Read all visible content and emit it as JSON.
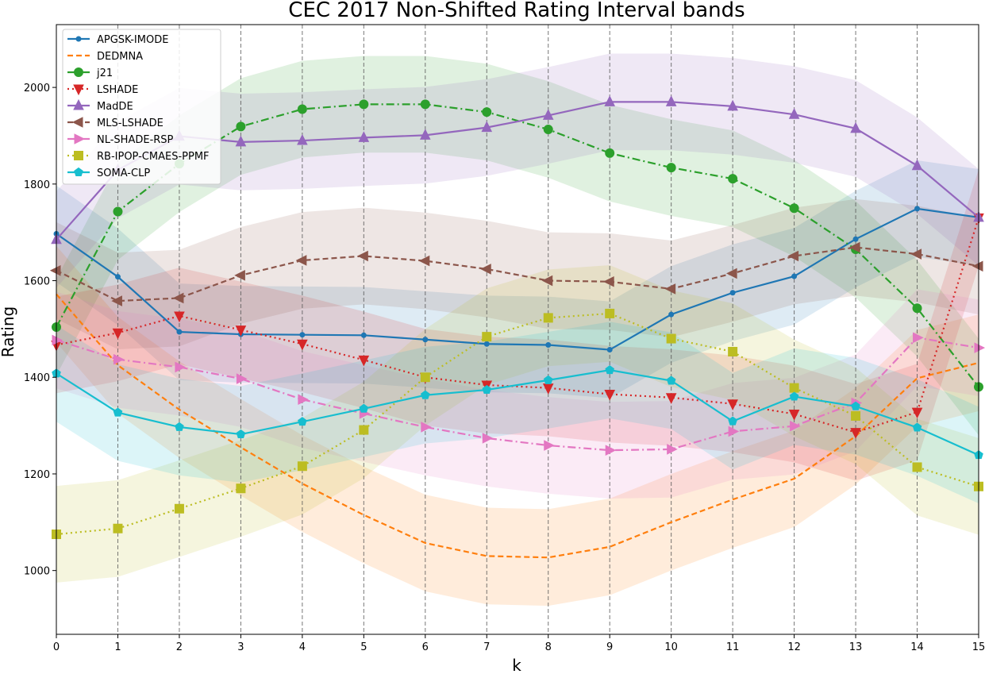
{
  "chart_data": {
    "type": "line",
    "title": "CEC 2017 Non-Shifted Rating Interval bands",
    "xlabel": "k",
    "ylabel": "Rating",
    "xlim": [
      0,
      15
    ],
    "ylim": [
      868,
      2130
    ],
    "x": [
      0,
      1,
      2,
      3,
      4,
      5,
      6,
      7,
      8,
      9,
      10,
      11,
      12,
      13,
      14,
      15
    ],
    "xticks": [
      "0",
      "1",
      "2",
      "3",
      "4",
      "5",
      "6",
      "7",
      "8",
      "9",
      "10",
      "11",
      "12",
      "13",
      "14",
      "15"
    ],
    "yticks": [
      1000,
      1200,
      1400,
      1600,
      1800,
      2000
    ],
    "vertical_dashed_grid": true,
    "legend_position": "top-left",
    "band_half_width": 100,
    "series": [
      {
        "name": "APGSK-IMODE",
        "color": "#1f77b4",
        "dash": "",
        "marker": "dot",
        "values": [
          1697,
          1608,
          1494,
          1489,
          1488,
          1487,
          1478,
          1469,
          1467,
          1457,
          1530,
          1575,
          1609,
          1686,
          1749,
          1731
        ]
      },
      {
        "name": "DEDMNA",
        "color": "#ff7f0e",
        "dash": "7,4",
        "marker": "none",
        "values": [
          1572,
          1425,
          1333,
          1255,
          1180,
          1115,
          1057,
          1030,
          1027,
          1049,
          1100,
          1147,
          1190,
          1278,
          1398,
          1430
        ]
      },
      {
        "name": "j21",
        "color": "#2ca02c",
        "dash": "10,4,2,4",
        "marker": "circle",
        "values": [
          1504,
          1743,
          1842,
          1919,
          1955,
          1965,
          1965,
          1949,
          1913,
          1864,
          1834,
          1811,
          1750,
          1665,
          1543,
          1380
        ]
      },
      {
        "name": "LSHADE",
        "color": "#d62728",
        "dash": "2,4",
        "marker": "triangle-down",
        "values": [
          1467,
          1492,
          1527,
          1498,
          1469,
          1436,
          1400,
          1384,
          1378,
          1365,
          1358,
          1345,
          1324,
          1286,
          1328,
          1730
        ]
      },
      {
        "name": "MadDE",
        "color": "#9467bd",
        "dash": "",
        "marker": "triangle-up",
        "values": [
          1685,
          1829,
          1899,
          1887,
          1890,
          1896,
          1901,
          1917,
          1942,
          1970,
          1970,
          1961,
          1944,
          1915,
          1838,
          1731
        ]
      },
      {
        "name": "MLS-LSHADE",
        "color": "#8c564b",
        "dash": "7,4",
        "marker": "triangle-left",
        "values": [
          1621,
          1558,
          1564,
          1611,
          1642,
          1651,
          1641,
          1624,
          1600,
          1598,
          1583,
          1615,
          1651,
          1669,
          1655,
          1630
        ]
      },
      {
        "name": "NL-SHADE-RSP",
        "color": "#e377c2",
        "dash": "10,4,2,4",
        "marker": "triangle-right",
        "values": [
          1477,
          1437,
          1421,
          1397,
          1354,
          1325,
          1297,
          1274,
          1259,
          1249,
          1251,
          1288,
          1299,
          1347,
          1482,
          1461
        ]
      },
      {
        "name": "RB-IPOP-CMAES-PPMF",
        "color": "#bcbd22",
        "dash": "2,4",
        "marker": "square",
        "values": [
          1075,
          1087,
          1128,
          1170,
          1216,
          1291,
          1400,
          1484,
          1523,
          1532,
          1480,
          1453,
          1378,
          1320,
          1214,
          1174
        ]
      },
      {
        "name": "SOMA-CLP",
        "color": "#17becf",
        "dash": "",
        "marker": "pentagon",
        "values": [
          1408,
          1327,
          1297,
          1282,
          1308,
          1335,
          1363,
          1374,
          1394,
          1415,
          1393,
          1309,
          1360,
          1340,
          1296,
          1239
        ]
      }
    ]
  }
}
